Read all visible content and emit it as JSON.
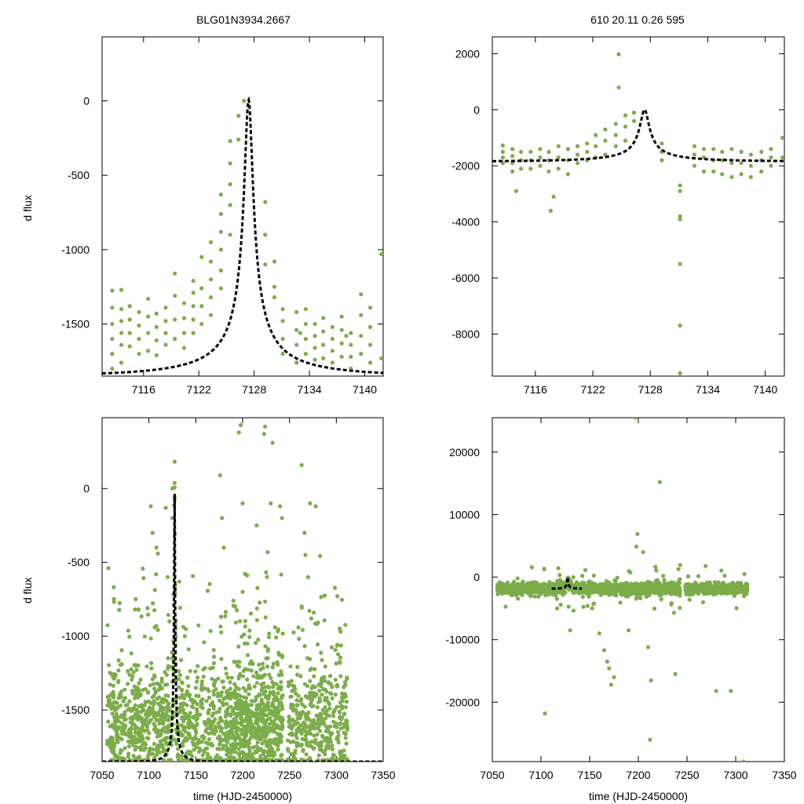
{
  "figure": {
    "title_left": "BLG01N3934.2667",
    "title_right": "610  20.11   0.26   595",
    "ylabel": "d flux",
    "xlabel": "time (HJD-2450000)"
  },
  "colors": {
    "points": "#7cad4a",
    "fit": "#000000",
    "axes": "#000000"
  },
  "chart_data": [
    {
      "id": "top-left",
      "type": "scatter",
      "title": "BLG01N3934.2667",
      "xlabel": "",
      "ylabel": "d flux",
      "xlim": [
        7111.5,
        7142
      ],
      "ylim": [
        -1850,
        430
      ],
      "xticks": [
        7116,
        7122,
        7128,
        7134,
        7140
      ],
      "yticks": [
        0,
        -500,
        -1000,
        -1500
      ],
      "model": {
        "t0": 7127.4,
        "tE": 15.0,
        "u0": 0.031,
        "fs": 59.4,
        "base": -1850,
        "dash": true
      },
      "series": [
        {
          "name": "observations",
          "x": [
            7112.6,
            7112.6,
            7112.6,
            7112.6,
            7112.6,
            7112.6,
            7113.6,
            7113.6,
            7113.6,
            7113.6,
            7113.6,
            7113.6,
            7114.5,
            7114.5,
            7114.5,
            7114.5,
            7115.5,
            7115.5,
            7115.5,
            7115.5,
            7116.5,
            7116.5,
            7116.5,
            7116.5,
            7117.4,
            7117.4,
            7117.4,
            7117.4,
            7118.4,
            7118.4,
            7118.4,
            7118.4,
            7119.4,
            7119.4,
            7119.4,
            7119.4,
            7120.4,
            7120.4,
            7120.4,
            7120.4,
            7121.4,
            7121.4,
            7121.4,
            7121.4,
            7121.4,
            7122.3,
            7122.3,
            7122.3,
            7122.3,
            7123.3,
            7123.3,
            7123.3,
            7123.3,
            7123.3,
            7124.4,
            7124.4,
            7124.4,
            7124.4,
            7124.4,
            7124.4,
            7125.4,
            7125.4,
            7125.4,
            7125.4,
            7125.4,
            7126.3,
            7126.3,
            7129.2,
            7129.2,
            7129.2,
            7130.2,
            7130.2,
            7130.2,
            7131.1,
            7131.1,
            7131.1,
            7131.1,
            7132.6,
            7132.6,
            7132.6,
            7132.6,
            7133.6,
            7133.6,
            7133.6,
            7133.6,
            7134.6,
            7134.6,
            7134.6,
            7134.6,
            7135.5,
            7135.5,
            7135.5,
            7135.5,
            7136.5,
            7136.5,
            7136.5,
            7136.5,
            7137.5,
            7137.5,
            7137.5,
            7137.5,
            7138.5,
            7138.5,
            7138.5,
            7138.5,
            7139.6,
            7139.6,
            7139.6,
            7139.6,
            7140.6,
            7140.6,
            7140.6,
            7140.6,
            7141.8,
            7141.8,
            7126.9,
            7133.0,
            7138.0
          ],
          "y": [
            -1275,
            -1390,
            -1500,
            -1600,
            -1700,
            -1800,
            -1270,
            -1400,
            -1480,
            -1560,
            -1640,
            -1760,
            -1380,
            -1470,
            -1560,
            -1650,
            -1420,
            -1510,
            -1600,
            -1700,
            -1330,
            -1450,
            -1560,
            -1680,
            -1430,
            -1520,
            -1610,
            -1710,
            -1390,
            -1480,
            -1560,
            -1640,
            -1160,
            -1310,
            -1470,
            -1600,
            -1360,
            -1460,
            -1560,
            -1660,
            -1210,
            -1290,
            -1380,
            -1470,
            -1560,
            -1050,
            -1260,
            -1380,
            -1500,
            -950,
            -1080,
            -1200,
            -1320,
            -1440,
            -630,
            -760,
            -880,
            -1000,
            -1140,
            -1260,
            -270,
            -420,
            -560,
            -700,
            -900,
            -100,
            -260,
            -680,
            -900,
            -1100,
            -1080,
            -1250,
            -1320,
            -1400,
            -1480,
            -1600,
            -1700,
            -1420,
            -1540,
            -1640,
            -1760,
            -1400,
            -1500,
            -1600,
            -1700,
            -1500,
            -1580,
            -1660,
            -1740,
            -1460,
            -1550,
            -1640,
            -1730,
            -1520,
            -1600,
            -1680,
            -1760,
            -1450,
            -1540,
            -1630,
            -1720,
            -1560,
            -1640,
            -1720,
            -1800,
            -1300,
            -1440,
            -1580,
            -1700,
            -1390,
            -1520,
            -1640,
            -1760,
            -1030,
            -1730,
            0,
            -1560,
            -1580
          ]
        }
      ]
    },
    {
      "id": "top-right",
      "type": "scatter",
      "title": "610  20.11   0.26   595",
      "xlabel": "",
      "ylabel": "",
      "xlim": [
        7111.5,
        7142
      ],
      "ylim": [
        -9500,
        2600
      ],
      "xticks": [
        7116,
        7122,
        7128,
        7134,
        7140
      ],
      "yticks": [
        2000,
        0,
        -2000,
        -4000,
        -6000,
        -8000
      ],
      "model": {
        "t0": 7127.4,
        "tE": 15.0,
        "u0": 0.031,
        "fs": 59.4,
        "base": -1850,
        "dash": true
      },
      "series": [
        {
          "name": "observations",
          "x": [
            7112.6,
            7112.6,
            7112.6,
            7112.6,
            7113.6,
            7113.6,
            7113.6,
            7113.6,
            7114.5,
            7114.5,
            7114.5,
            7115.5,
            7115.5,
            7115.5,
            7116.5,
            7116.5,
            7116.5,
            7117.4,
            7117.4,
            7117.4,
            7118.4,
            7118.4,
            7118.4,
            7119.4,
            7119.4,
            7119.4,
            7120.4,
            7120.4,
            7120.4,
            7121.4,
            7121.4,
            7121.4,
            7122.3,
            7122.3,
            7122.3,
            7123.3,
            7123.3,
            7123.3,
            7124.4,
            7124.4,
            7124.4,
            7125.4,
            7125.4,
            7125.4,
            7126.3,
            7126.3,
            7129.2,
            7129.2,
            7129.2,
            7131.1,
            7131.1,
            7131.1,
            7131.1,
            7131.1,
            7131.1,
            7131.1,
            7132.6,
            7132.6,
            7132.6,
            7133.6,
            7133.6,
            7133.6,
            7134.6,
            7134.6,
            7134.6,
            7135.5,
            7135.5,
            7135.5,
            7136.5,
            7136.5,
            7136.5,
            7137.5,
            7137.5,
            7137.5,
            7138.5,
            7138.5,
            7138.5,
            7139.6,
            7139.6,
            7139.6,
            7140.6,
            7140.6,
            7140.6,
            7141.8,
            7141.8,
            7124.7,
            7124.7,
            7117.9,
            7114.0,
            7117.6
          ],
          "y": [
            -1270,
            -1500,
            -1700,
            -1900,
            -1400,
            -1650,
            -1900,
            -2200,
            -1500,
            -1800,
            -2100,
            -1500,
            -1800,
            -2100,
            -1400,
            -1700,
            -2000,
            -1500,
            -1800,
            -2200,
            -1300,
            -1700,
            -2100,
            -1400,
            -1800,
            -2300,
            -1300,
            -1600,
            -1900,
            -1200,
            -1500,
            -1800,
            -900,
            -1300,
            -1700,
            -700,
            -1100,
            -1600,
            -500,
            -900,
            -1300,
            -200,
            -600,
            -1100,
            -100,
            -400,
            -1200,
            -1500,
            -1800,
            -2700,
            -2900,
            -3800,
            -3900,
            -5500,
            -7700,
            -9400,
            -1300,
            -1600,
            -2000,
            -1400,
            -1700,
            -2200,
            -1400,
            -1800,
            -2200,
            -1500,
            -1800,
            -2300,
            -1400,
            -1900,
            -2400,
            -1500,
            -1900,
            -2300,
            -1600,
            -2000,
            -2400,
            -1500,
            -1800,
            -2200,
            -1400,
            -1700,
            -2000,
            -1000,
            -1700,
            1980,
            800,
            -3100,
            -2900,
            -3600
          ]
        }
      ]
    },
    {
      "id": "bottom-left",
      "type": "scatter",
      "title": "",
      "xlabel": "time (HJD-2450000)",
      "ylabel": "d flux",
      "xlim": [
        7050,
        7350
      ],
      "ylim": [
        -1850,
        480
      ],
      "xticks": [
        7050,
        7100,
        7150,
        7200,
        7250,
        7300,
        7350
      ],
      "yticks": [
        0,
        -500,
        -1000,
        -1500
      ],
      "model": {
        "t0": 7127.4,
        "tE": 15.0,
        "u0": 0.031,
        "fs": 59.4,
        "base": -1850,
        "dash": true
      },
      "series": [
        {
          "name": "observations",
          "x": [
            7125,
            7125,
            7176,
            7178,
            7180,
            7196,
            7198,
            7200,
            7215,
            7223,
            7232,
            7263,
            7266,
            7267,
            7270,
            7272,
            7224,
            7230,
            7242,
            7200,
            7192,
            7102,
            7104,
            7108,
            7118,
            7120,
            7240,
            7278,
            7122,
            7125
          ],
          "y": [
            0,
            -200,
            90,
            -200,
            -400,
            380,
            430,
            -100,
            -250,
            370,
            310,
            160,
            -300,
            -450,
            -600,
            -100,
            420,
            -100,
            -200,
            -700,
            -800,
            -120,
            -300,
            -400,
            -130,
            -600,
            -120,
            -120,
            -900,
            -1150
          ]
        }
      ]
    },
    {
      "id": "bottom-right",
      "type": "scatter",
      "title": "",
      "xlabel": "time (HJD-2450000)",
      "ylabel": "",
      "xlim": [
        7050,
        7350
      ],
      "ylim": [
        -29500,
        25500
      ],
      "xticks": [
        7050,
        7100,
        7150,
        7200,
        7250,
        7300,
        7350
      ],
      "yticks": [
        20000,
        10000,
        0,
        -10000,
        -20000
      ],
      "model": {
        "t0": 7127.4,
        "tE": 15.0,
        "u0": 0.031,
        "fs": 59.4,
        "base": -1850,
        "dash": true,
        "tmin": 7111,
        "tmax": 7142
      },
      "series": [
        {
          "name": "observations",
          "x": [
            7104,
            7165,
            7168,
            7170,
            7172,
            7175,
            7197,
            7199,
            7210,
            7212,
            7213,
            7222,
            7238,
            7280,
            7295,
            7308,
            7198,
            7205,
            7160,
            7130,
            7190
          ],
          "y": [
            -21800,
            -11700,
            -13500,
            -14600,
            -17200,
            -16000,
            25500,
            6900,
            -11200,
            -26000,
            -16500,
            15200,
            -15500,
            -18200,
            -18200,
            -29500,
            4900,
            4000,
            -9000,
            -8500,
            -8500
          ]
        }
      ]
    }
  ]
}
